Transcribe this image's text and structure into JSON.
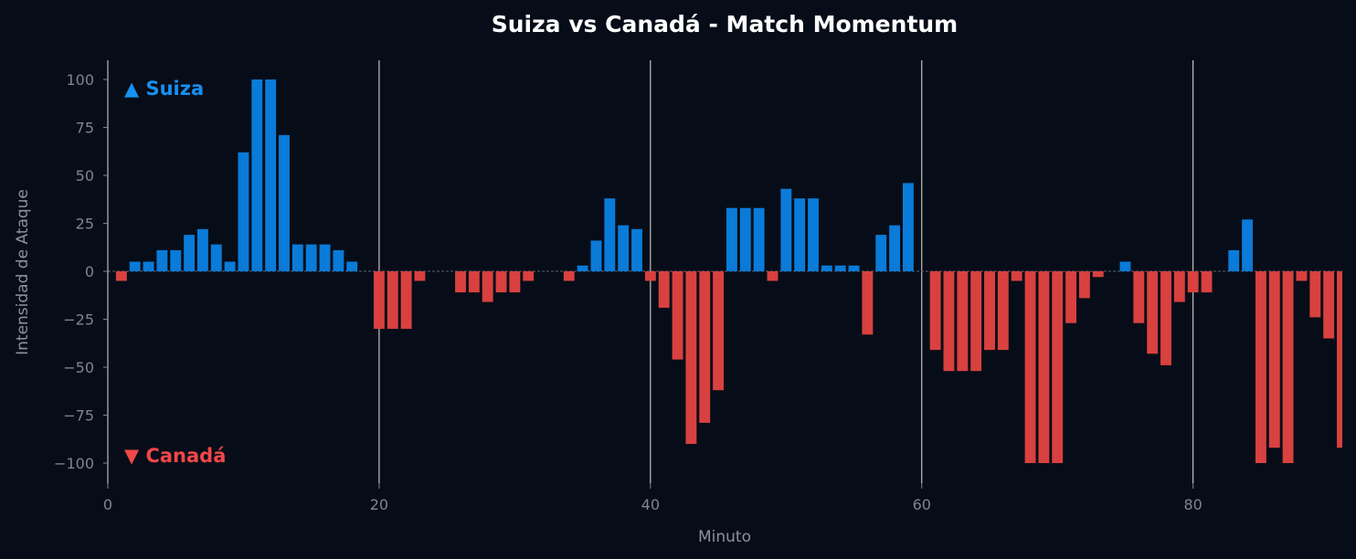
{
  "chart_data": {
    "type": "bar",
    "title": "Suiza vs Canadá - Match Momentum",
    "xlabel": "Minuto",
    "ylabel": "Intensidad de Ataque",
    "xlim": [
      0,
      91
    ],
    "ylim": [
      -110,
      110
    ],
    "xticks": [
      0,
      20,
      40,
      60,
      80
    ],
    "yticks": [
      100,
      75,
      50,
      25,
      0,
      -25,
      -50,
      -75,
      -100
    ],
    "ytick_labels": [
      "100",
      "75",
      "50",
      "25",
      "0",
      "−25",
      "−50",
      "−75",
      "−100"
    ],
    "period_lines": [
      20,
      40,
      60,
      80
    ],
    "grid": false,
    "zero_line": true,
    "annotations": {
      "top": "▲ Suiza",
      "bottom": "▼ Canadá"
    },
    "colors": {
      "background": "#070d18",
      "positive": "#0a7bd8",
      "negative": "#d8413f",
      "suiza_text": "#1690f2",
      "canada_text": "#f04848"
    },
    "x": [
      1,
      2,
      3,
      4,
      5,
      6,
      7,
      8,
      9,
      10,
      11,
      12,
      13,
      14,
      15,
      16,
      17,
      18,
      19,
      20,
      21,
      22,
      23,
      24,
      25,
      26,
      27,
      28,
      29,
      30,
      31,
      32,
      33,
      34,
      35,
      36,
      37,
      38,
      39,
      40,
      41,
      42,
      43,
      44,
      45,
      46,
      47,
      48,
      49,
      50,
      51,
      52,
      53,
      54,
      55,
      56,
      57,
      58,
      59,
      60,
      61,
      62,
      63,
      64,
      65,
      66,
      67,
      68,
      69,
      70,
      71,
      72,
      73,
      74,
      75,
      76,
      77,
      78,
      79,
      80,
      81,
      82,
      83,
      84,
      85,
      86,
      87,
      88,
      89,
      90,
      91
    ],
    "values": [
      -5,
      5,
      5,
      11,
      11,
      19,
      22,
      14,
      5,
      62,
      100,
      100,
      71,
      14,
      14,
      14,
      11,
      5,
      0,
      -30,
      -30,
      -30,
      -5,
      0,
      0,
      -11,
      -11,
      -16,
      -11,
      -11,
      -5,
      0,
      0,
      -5,
      3,
      16,
      38,
      24,
      22,
      -5,
      -19,
      -46,
      -90,
      -79,
      -62,
      33,
      33,
      33,
      -5,
      43,
      38,
      38,
      3,
      3,
      3,
      -33,
      19,
      24,
      46,
      0,
      -41,
      -52,
      -52,
      -52,
      -41,
      -41,
      -5,
      -100,
      -100,
      -100,
      -27,
      -14,
      -3,
      0,
      5,
      -27,
      -43,
      -49,
      -16,
      -11,
      -11,
      0,
      11,
      27,
      -100,
      -92,
      -100,
      -5,
      -24,
      -35,
      -92
    ]
  }
}
